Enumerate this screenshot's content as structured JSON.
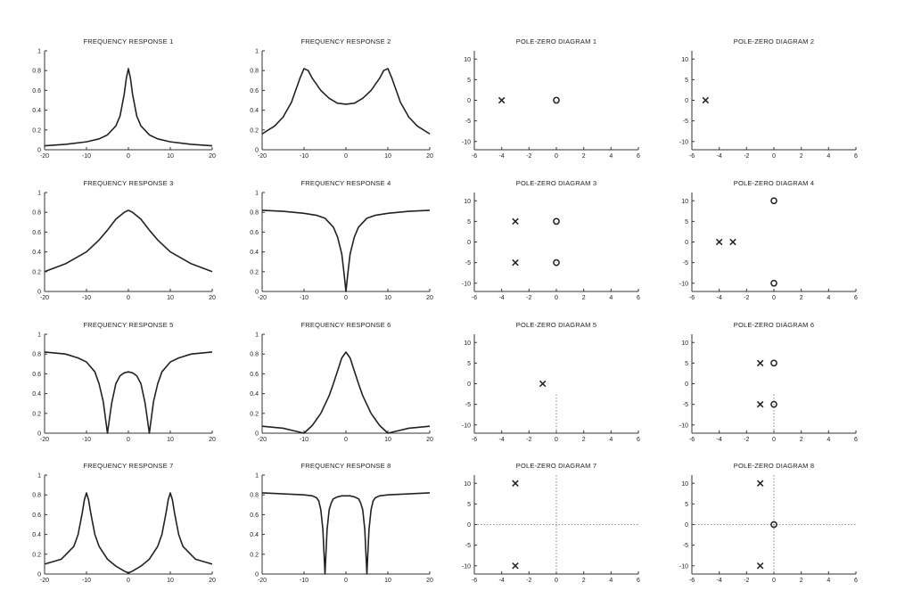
{
  "chart_data": [
    {
      "id": "fr1",
      "type": "line",
      "title": "FREQUENCY RESPONSE 1",
      "xlim": [
        -20,
        20
      ],
      "ylim": [
        0,
        1
      ],
      "xticks": [
        -20,
        -10,
        0,
        10,
        20
      ],
      "yticks": [
        0,
        0.2,
        0.4,
        0.6,
        0.8,
        1
      ],
      "x": [
        -20,
        -15,
        -10,
        -7,
        -5,
        -3,
        -2,
        -1,
        -0.5,
        0,
        0.5,
        1,
        2,
        3,
        5,
        7,
        10,
        15,
        20
      ],
      "y": [
        0.04,
        0.055,
        0.08,
        0.11,
        0.15,
        0.24,
        0.34,
        0.56,
        0.72,
        0.82,
        0.72,
        0.56,
        0.34,
        0.24,
        0.15,
        0.11,
        0.08,
        0.055,
        0.04
      ]
    },
    {
      "id": "fr2",
      "type": "line",
      "title": "FREQUENCY RESPONSE 2",
      "xlim": [
        -20,
        20
      ],
      "ylim": [
        0,
        1
      ],
      "xticks": [
        -20,
        -10,
        0,
        10,
        20
      ],
      "yticks": [
        0,
        0.2,
        0.4,
        0.6,
        0.8,
        1
      ],
      "x": [
        -20,
        -17,
        -15,
        -13,
        -11,
        -10,
        -9,
        -8,
        -6,
        -4,
        -2,
        0,
        2,
        4,
        6,
        8,
        9,
        10,
        11,
        13,
        15,
        17,
        20
      ],
      "y": [
        0.16,
        0.24,
        0.33,
        0.48,
        0.72,
        0.82,
        0.8,
        0.72,
        0.6,
        0.52,
        0.47,
        0.46,
        0.47,
        0.52,
        0.6,
        0.72,
        0.8,
        0.82,
        0.72,
        0.48,
        0.33,
        0.24,
        0.16
      ]
    },
    {
      "id": "pz1",
      "type": "scatter",
      "title": "POLE-ZERO DIAGRAM 1",
      "xlim": [
        -6,
        6
      ],
      "ylim": [
        -12,
        12
      ],
      "xticks": [
        -6,
        -4,
        -2,
        0,
        2,
        4,
        6
      ],
      "yticks": [
        -10,
        -5,
        0,
        5,
        10
      ],
      "poles": [
        [
          -4,
          0
        ]
      ],
      "zeros": [
        [
          0,
          0
        ]
      ],
      "guides": false
    },
    {
      "id": "pz2",
      "type": "scatter",
      "title": "POLE-ZERO DIAGRAM 2",
      "xlim": [
        -6,
        6
      ],
      "ylim": [
        -12,
        12
      ],
      "xticks": [
        -6,
        -4,
        -2,
        0,
        2,
        4,
        6
      ],
      "yticks": [
        -10,
        -5,
        0,
        5,
        10
      ],
      "poles": [
        [
          -5,
          0
        ]
      ],
      "zeros": [],
      "guides": false
    },
    {
      "id": "fr3",
      "type": "line",
      "title": "FREQUENCY RESPONSE 3",
      "xlim": [
        -20,
        20
      ],
      "ylim": [
        0,
        1
      ],
      "xticks": [
        -20,
        -10,
        0,
        10,
        20
      ],
      "yticks": [
        0,
        0.2,
        0.4,
        0.6,
        0.8,
        1
      ],
      "x": [
        -20,
        -15,
        -10,
        -7,
        -5,
        -3,
        -1,
        0,
        1,
        3,
        5,
        7,
        10,
        15,
        20
      ],
      "y": [
        0.2,
        0.28,
        0.4,
        0.52,
        0.62,
        0.73,
        0.8,
        0.82,
        0.8,
        0.73,
        0.62,
        0.52,
        0.4,
        0.28,
        0.2
      ]
    },
    {
      "id": "fr4",
      "type": "line",
      "title": "FREQUENCY RESPONSE 4",
      "xlim": [
        -20,
        20
      ],
      "ylim": [
        0,
        1
      ],
      "xticks": [
        -20,
        -10,
        0,
        10,
        20
      ],
      "yticks": [
        0,
        0.2,
        0.4,
        0.6,
        0.8,
        1
      ],
      "x": [
        -20,
        -15,
        -10,
        -7,
        -5,
        -3,
        -2,
        -1,
        -0.5,
        0,
        0.5,
        1,
        2,
        3,
        5,
        7,
        10,
        15,
        20
      ],
      "y": [
        0.82,
        0.81,
        0.79,
        0.77,
        0.74,
        0.65,
        0.55,
        0.38,
        0.2,
        0,
        0.2,
        0.38,
        0.55,
        0.65,
        0.74,
        0.77,
        0.79,
        0.81,
        0.82
      ]
    },
    {
      "id": "pz3",
      "type": "scatter",
      "title": "POLE-ZERO DIAGRAM 3",
      "xlim": [
        -6,
        6
      ],
      "ylim": [
        -12,
        12
      ],
      "xticks": [
        -6,
        -4,
        -2,
        0,
        2,
        4,
        6
      ],
      "yticks": [
        -10,
        -5,
        0,
        5,
        10
      ],
      "poles": [
        [
          -3,
          5
        ],
        [
          -3,
          -5
        ]
      ],
      "zeros": [
        [
          0,
          5
        ],
        [
          0,
          -5
        ]
      ],
      "guides": false
    },
    {
      "id": "pz4",
      "type": "scatter",
      "title": "POLE-ZERO DIAGRAM 4",
      "xlim": [
        -6,
        6
      ],
      "ylim": [
        -12,
        12
      ],
      "xticks": [
        -6,
        -4,
        -2,
        0,
        2,
        4,
        6
      ],
      "yticks": [
        -10,
        -5,
        0,
        5,
        10
      ],
      "poles": [
        [
          -4,
          0
        ],
        [
          -3,
          0
        ]
      ],
      "zeros": [
        [
          0,
          10
        ],
        [
          0,
          -10
        ]
      ],
      "guides": false
    },
    {
      "id": "fr5",
      "type": "line",
      "title": "FREQUENCY RESPONSE 5",
      "xlim": [
        -20,
        20
      ],
      "ylim": [
        0,
        1
      ],
      "xticks": [
        -20,
        -10,
        0,
        10,
        20
      ],
      "yticks": [
        0,
        0.2,
        0.4,
        0.6,
        0.8,
        1
      ],
      "x": [
        -20,
        -15,
        -12,
        -10,
        -8,
        -7,
        -6,
        -5,
        -4,
        -3,
        -2,
        -1,
        0,
        1,
        2,
        3,
        4,
        5,
        6,
        7,
        8,
        10,
        12,
        15,
        20
      ],
      "y": [
        0.82,
        0.8,
        0.76,
        0.72,
        0.62,
        0.5,
        0.32,
        0,
        0.3,
        0.5,
        0.58,
        0.61,
        0.62,
        0.61,
        0.58,
        0.5,
        0.3,
        0,
        0.32,
        0.5,
        0.62,
        0.72,
        0.76,
        0.8,
        0.82
      ]
    },
    {
      "id": "fr6",
      "type": "line",
      "title": "FREQUENCY RESPONSE 6",
      "xlim": [
        -20,
        20
      ],
      "ylim": [
        0,
        1
      ],
      "xticks": [
        -20,
        -10,
        0,
        10,
        20
      ],
      "yticks": [
        0,
        0.2,
        0.4,
        0.6,
        0.8,
        1
      ],
      "x": [
        -20,
        -15,
        -12,
        -10,
        -8,
        -6,
        -4,
        -3,
        -2,
        -1,
        0,
        1,
        2,
        3,
        4,
        6,
        8,
        10,
        12,
        15,
        20
      ],
      "y": [
        0.07,
        0.05,
        0.02,
        0,
        0.08,
        0.2,
        0.38,
        0.5,
        0.63,
        0.76,
        0.82,
        0.76,
        0.63,
        0.5,
        0.38,
        0.2,
        0.08,
        0,
        0.02,
        0.05,
        0.07
      ]
    },
    {
      "id": "pz5",
      "type": "scatter",
      "title": "POLE-ZERO DIAGRAM 5",
      "xlim": [
        -6,
        6
      ],
      "ylim": [
        -12,
        12
      ],
      "xticks": [
        -6,
        -4,
        -2,
        0,
        2,
        4,
        6
      ],
      "yticks": [
        -10,
        -5,
        0,
        5,
        10
      ],
      "poles": [
        [
          -1,
          0
        ]
      ],
      "zeros": [],
      "guides": "lower"
    },
    {
      "id": "pz6",
      "type": "scatter",
      "title": "POLE-ZERO DIAGRAM 6",
      "xlim": [
        -6,
        6
      ],
      "ylim": [
        -12,
        12
      ],
      "xticks": [
        -6,
        -4,
        -2,
        0,
        2,
        4,
        6
      ],
      "yticks": [
        -10,
        -5,
        0,
        5,
        10
      ],
      "poles": [
        [
          -1,
          5
        ],
        [
          -1,
          -5
        ]
      ],
      "zeros": [
        [
          0,
          5
        ],
        [
          0,
          -5
        ]
      ],
      "guides": "lower"
    },
    {
      "id": "fr7",
      "type": "line",
      "title": "FREQUENCY RESPONSE 7",
      "xlim": [
        -20,
        20
      ],
      "ylim": [
        0,
        1
      ],
      "xticks": [
        -20,
        -10,
        0,
        10,
        20
      ],
      "yticks": [
        0,
        0.2,
        0.4,
        0.6,
        0.8,
        1
      ],
      "x": [
        -20,
        -16,
        -13,
        -12,
        -11,
        -10.5,
        -10,
        -9.5,
        -9,
        -8,
        -7,
        -5,
        -3,
        -1,
        0,
        1,
        3,
        5,
        7,
        8,
        9,
        9.5,
        10,
        10.5,
        11,
        12,
        13,
        16,
        20
      ],
      "y": [
        0.1,
        0.15,
        0.28,
        0.4,
        0.62,
        0.75,
        0.82,
        0.75,
        0.62,
        0.4,
        0.28,
        0.15,
        0.08,
        0.03,
        0.01,
        0.03,
        0.08,
        0.15,
        0.28,
        0.4,
        0.62,
        0.75,
        0.82,
        0.75,
        0.62,
        0.4,
        0.28,
        0.15,
        0.1
      ]
    },
    {
      "id": "fr8",
      "type": "line",
      "title": "FREQUENCY RESPONSE 8",
      "xlim": [
        -20,
        20
      ],
      "ylim": [
        0,
        1
      ],
      "xticks": [
        -20,
        -10,
        0,
        10,
        20
      ],
      "yticks": [
        0,
        0.2,
        0.4,
        0.6,
        0.8,
        1
      ],
      "x": [
        -20,
        -15,
        -10,
        -8,
        -7,
        -6.5,
        -6,
        -5.5,
        -5,
        -4.5,
        -4,
        -3.5,
        -3,
        -2,
        -1,
        0,
        1,
        2,
        3,
        3.5,
        4,
        4.5,
        5,
        5.5,
        6,
        6.5,
        7,
        8,
        10,
        15,
        20
      ],
      "y": [
        0.82,
        0.81,
        0.8,
        0.79,
        0.77,
        0.74,
        0.65,
        0.45,
        0,
        0.45,
        0.65,
        0.72,
        0.76,
        0.78,
        0.79,
        0.79,
        0.79,
        0.78,
        0.76,
        0.72,
        0.65,
        0.45,
        0,
        0.45,
        0.65,
        0.74,
        0.77,
        0.79,
        0.8,
        0.81,
        0.82
      ]
    },
    {
      "id": "pz7",
      "type": "scatter",
      "title": "POLE-ZERO DIAGRAM 7",
      "xlim": [
        -6,
        6
      ],
      "ylim": [
        -12,
        12
      ],
      "xticks": [
        -6,
        -4,
        -2,
        0,
        2,
        4,
        6
      ],
      "yticks": [
        -10,
        -5,
        0,
        5,
        10
      ],
      "poles": [
        [
          -3,
          10
        ],
        [
          -3,
          -10
        ]
      ],
      "zeros": [],
      "guides": "full"
    },
    {
      "id": "pz8",
      "type": "scatter",
      "title": "POLE-ZERO DIAGRAM 8",
      "xlim": [
        -6,
        6
      ],
      "ylim": [
        -12,
        12
      ],
      "xticks": [
        -6,
        -4,
        -2,
        0,
        2,
        4,
        6
      ],
      "yticks": [
        -10,
        -5,
        0,
        5,
        10
      ],
      "poles": [
        [
          -1,
          10
        ],
        [
          -1,
          -10
        ]
      ],
      "zeros": [
        [
          0,
          0
        ]
      ],
      "guides": "full"
    }
  ]
}
